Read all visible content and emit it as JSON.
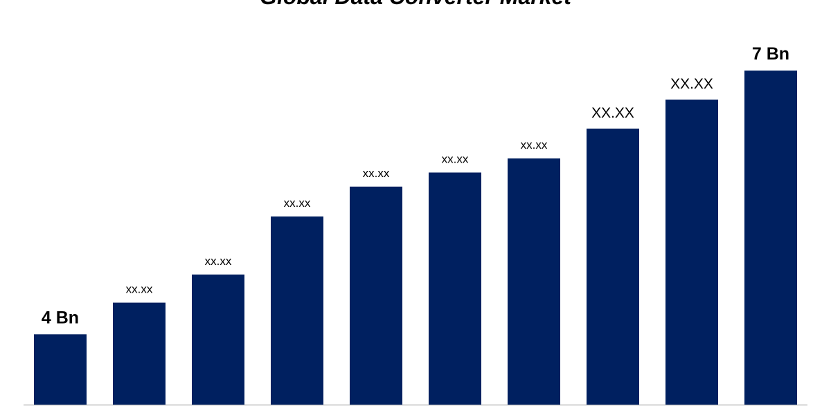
{
  "chart_data": {
    "type": "bar",
    "title": "Global Data Converter Market",
    "values": [
      4,
      4.36,
      4.68,
      5.34,
      5.68,
      5.84,
      6.0,
      6.34,
      6.67,
      7
    ],
    "value_labels": [
      "4 Bn",
      "xx.xx",
      "xx.xx",
      "xx.xx",
      "xx.xx",
      "xx.xx",
      "xx.xx",
      "XX.XX",
      "XX.XX",
      "7 Bn"
    ],
    "color": "#002060",
    "ylim": [
      3.2,
      7.2
    ]
  }
}
